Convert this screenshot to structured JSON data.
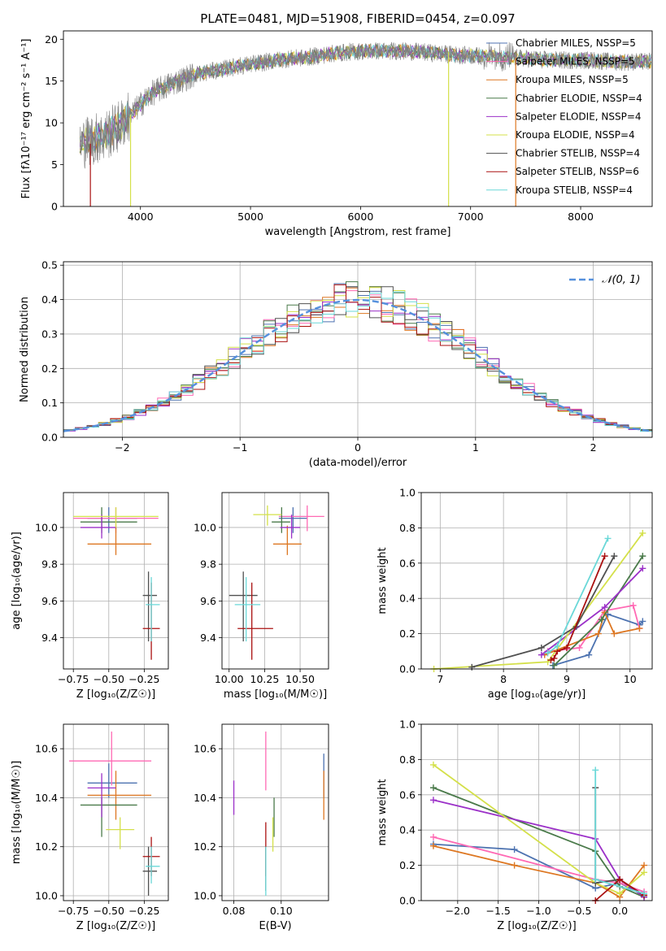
{
  "title": "PLATE=0481, MJD=51908, FIBERID=0454, z=0.097",
  "colors": {
    "chabrier_miles": "#4c72b0",
    "salpeter_miles": "#ff69b4",
    "kroupa_miles": "#dd7722",
    "chabrier_elodie": "#4a7a4a",
    "salpeter_elodie": "#9b30c8",
    "kroupa_elodie": "#d4e04a",
    "chabrier_stelib": "#505050",
    "salpeter_stelib": "#aa1111",
    "kroupa_stelib": "#6ad8d8",
    "gauss": "#5590dd",
    "grid": "#b0b0b0"
  },
  "chart_data": [
    {
      "id": "spectrum",
      "type": "line",
      "title": "PLATE=0481, MJD=51908, FIBERID=0454, z=0.097",
      "xlabel": "wavelength [Angstrom, rest frame]",
      "ylabel": "Flux [fλ10⁻¹⁷ erg cm⁻² s⁻¹ A⁻¹]",
      "xlim": [
        3300,
        8650
      ],
      "ylim": [
        0,
        21
      ],
      "xticks": [
        "4000",
        "5000",
        "6000",
        "7000",
        "8000"
      ],
      "yticks": [
        "0",
        "5",
        "10",
        "15",
        "20"
      ],
      "legend_position": "top-right",
      "legend": [
        "Chabrier MILES, NSSP=5",
        "Salpeter MILES, NSSP=5",
        "Kroupa MILES, NSSP=5",
        "Chabrier ELODIE, NSSP=4",
        "Salpeter ELODIE, NSSP=4",
        "Kroupa ELODIE, NSSP=4",
        "Chabrier STELIB, NSSP=4",
        "Salpeter STELIB, NSSP=6",
        "Kroupa STELIB, NSSP=4"
      ],
      "data_trend": {
        "x": [
          3450,
          3550,
          3650,
          3800,
          3950,
          4100,
          4300,
          4500,
          4700,
          4900,
          5100,
          5300,
          5500,
          5700,
          5900,
          6100,
          6300,
          6500,
          6700,
          6900,
          7100,
          7300,
          7500,
          7700,
          7900,
          8100,
          8300,
          8600
        ],
        "y": [
          7.5,
          8,
          8.3,
          9.5,
          11.5,
          13.5,
          14.8,
          15.8,
          16.3,
          16.8,
          17.2,
          17.6,
          17.8,
          18.2,
          18.5,
          18.6,
          18.6,
          18.5,
          18.3,
          18.1,
          18.0,
          17.8,
          17.7,
          17.5,
          17.5,
          17.5,
          17.3,
          17.3
        ]
      }
    },
    {
      "id": "residuals",
      "type": "histogram",
      "xlabel": "(data-model)/error",
      "ylabel": "Normed distribution",
      "xlim": [
        -2.5,
        2.5
      ],
      "ylim": [
        0,
        0.51
      ],
      "xticks": [
        "−2",
        "−1",
        "0",
        "1",
        "2"
      ],
      "yticks": [
        "0.0",
        "0.1",
        "0.2",
        "0.3",
        "0.4",
        "0.5"
      ],
      "legend_position": "top-right",
      "gauss_label": "𝒩(0, 1)",
      "bin_width": 0.1
    },
    {
      "id": "age_vs_Z",
      "type": "errorbar",
      "xlabel": "Z [log₁₀(Z/Z☉)]",
      "ylabel": "age  [log₁₀(age/yr)]",
      "xlim": [
        -0.82,
        -0.08
      ],
      "ylim": [
        9.23,
        10.19
      ],
      "xticks": [
        "−0.75",
        "−0.50",
        "−0.25"
      ],
      "yticks": [
        "9.4",
        "9.6",
        "9.8",
        "10.0"
      ],
      "points": [
        {
          "model": "chabrier_miles",
          "x": -0.5,
          "y": 10.05,
          "xe": [
            0.15,
            0.2
          ],
          "ye": [
            0.08,
            0.06
          ]
        },
        {
          "model": "salpeter_miles",
          "x": -0.45,
          "y": 10.05,
          "xe": [
            0.3,
            0.3
          ],
          "ye": [
            0.08,
            0.06
          ]
        },
        {
          "model": "kroupa_miles",
          "x": -0.45,
          "y": 9.91,
          "xe": [
            0.2,
            0.25
          ],
          "ye": [
            0.06,
            0.1
          ]
        },
        {
          "model": "chabrier_elodie",
          "x": -0.55,
          "y": 10.03,
          "xe": [
            0.15,
            0.25
          ],
          "ye": [
            0.06,
            0.08
          ]
        },
        {
          "model": "salpeter_elodie",
          "x": -0.55,
          "y": 10.0,
          "xe": [
            0.15,
            0.1
          ],
          "ye": [
            0.06,
            0.07
          ]
        },
        {
          "model": "kroupa_elodie",
          "x": -0.45,
          "y": 10.06,
          "xe": [
            0.3,
            0.3
          ],
          "ye": [
            0.06,
            0.05
          ]
        },
        {
          "model": "chabrier_stelib",
          "x": -0.22,
          "y": 9.63,
          "xe": [
            0.04,
            0.06
          ],
          "ye": [
            0.25,
            0.13
          ]
        },
        {
          "model": "salpeter_stelib",
          "x": -0.2,
          "y": 9.45,
          "xe": [
            0.06,
            0.06
          ],
          "ye": [
            0.17,
            0.25
          ]
        },
        {
          "model": "kroupa_stelib",
          "x": -0.2,
          "y": 9.58,
          "xe": [
            0.04,
            0.06
          ],
          "ye": [
            0.2,
            0.15
          ]
        }
      ]
    },
    {
      "id": "age_vs_mass",
      "type": "errorbar",
      "xlabel": "mass [log₁₀(M/M☉)]",
      "ylabel": "",
      "xlim": [
        9.95,
        10.7
      ],
      "ylim": [
        9.23,
        10.19
      ],
      "xticks": [
        "10.00",
        "10.25",
        "10.50"
      ],
      "yticks": [
        "9.4",
        "9.6",
        "9.8",
        "10.0"
      ],
      "points": [
        {
          "model": "chabrier_miles",
          "x": 10.45,
          "y": 10.05,
          "xe": [
            0.1,
            0.1
          ],
          "ye": [
            0.08,
            0.06
          ]
        },
        {
          "model": "salpeter_miles",
          "x": 10.55,
          "y": 10.06,
          "xe": [
            0.2,
            0.12
          ],
          "ye": [
            0.08,
            0.06
          ]
        },
        {
          "model": "kroupa_miles",
          "x": 10.41,
          "y": 9.91,
          "xe": [
            0.1,
            0.1
          ],
          "ye": [
            0.06,
            0.1
          ]
        },
        {
          "model": "chabrier_elodie",
          "x": 10.37,
          "y": 10.03,
          "xe": [
            0.07,
            0.06
          ],
          "ye": [
            0.06,
            0.08
          ]
        },
        {
          "model": "salpeter_elodie",
          "x": 10.44,
          "y": 10.0,
          "xe": [
            0.08,
            0.06
          ],
          "ye": [
            0.06,
            0.07
          ]
        },
        {
          "model": "kroupa_elodie",
          "x": 10.27,
          "y": 10.07,
          "xe": [
            0.1,
            0.1
          ],
          "ye": [
            0.06,
            0.05
          ]
        },
        {
          "model": "chabrier_stelib",
          "x": 10.1,
          "y": 9.63,
          "xe": [
            0.1,
            0.1
          ],
          "ye": [
            0.25,
            0.13
          ]
        },
        {
          "model": "salpeter_stelib",
          "x": 10.16,
          "y": 9.45,
          "xe": [
            0.1,
            0.15
          ],
          "ye": [
            0.17,
            0.25
          ]
        },
        {
          "model": "kroupa_stelib",
          "x": 10.12,
          "y": 9.58,
          "xe": [
            0.08,
            0.1
          ],
          "ye": [
            0.2,
            0.15
          ]
        }
      ]
    },
    {
      "id": "mw_vs_age",
      "type": "line",
      "xlabel": "age  [log₁₀(age/yr)]",
      "ylabel": "mass weight",
      "xlim": [
        6.7,
        10.35
      ],
      "ylim": [
        0,
        1
      ],
      "xticks": [
        "7",
        "8",
        "9",
        "10"
      ],
      "yticks": [
        "0.0",
        "0.2",
        "0.4",
        "0.6",
        "0.8",
        "1.0"
      ],
      "series": [
        {
          "model": "chabrier_miles",
          "x": [
            8.78,
            9.35,
            9.65,
            10.15,
            10.2
          ],
          "y": [
            0.02,
            0.08,
            0.31,
            0.25,
            0.27
          ]
        },
        {
          "model": "salpeter_miles",
          "x": [
            8.7,
            9.2,
            9.6,
            10.05,
            10.15
          ],
          "y": [
            0.1,
            0.12,
            0.33,
            0.36,
            0.23
          ]
        },
        {
          "model": "kroupa_miles",
          "x": [
            8.65,
            9.5,
            9.6,
            9.75,
            10.15
          ],
          "y": [
            0.08,
            0.2,
            0.32,
            0.2,
            0.23
          ]
        },
        {
          "model": "chabrier_elodie",
          "x": [
            8.8,
            9.55,
            10.2
          ],
          "y": [
            0.02,
            0.28,
            0.64
          ]
        },
        {
          "model": "salpeter_elodie",
          "x": [
            8.6,
            9.6,
            10.2
          ],
          "y": [
            0.08,
            0.35,
            0.57
          ]
        },
        {
          "model": "kroupa_elodie",
          "x": [
            6.9,
            8.7,
            10.2
          ],
          "y": [
            0.0,
            0.04,
            0.77
          ]
        },
        {
          "model": "chabrier_stelib",
          "x": [
            7.5,
            8.6,
            9.15,
            9.75
          ],
          "y": [
            0.01,
            0.12,
            0.24,
            0.64
          ]
        },
        {
          "model": "salpeter_stelib",
          "x": [
            8.75,
            8.8,
            8.85,
            9.0,
            9.6
          ],
          "y": [
            0.05,
            0.06,
            0.1,
            0.12,
            0.64
          ]
        },
        {
          "model": "kroupa_stelib",
          "x": [
            8.7,
            8.85,
            9.65
          ],
          "y": [
            0.09,
            0.13,
            0.74
          ]
        }
      ]
    },
    {
      "id": "mass_vs_Z",
      "type": "errorbar",
      "xlabel": "Z [log₁₀(Z/Z☉)]",
      "ylabel": "mass [log₁₀(M/M☉)]",
      "xlim": [
        -0.82,
        -0.08
      ],
      "ylim": [
        9.98,
        10.7
      ],
      "xticks": [
        "−0.75",
        "−0.50",
        "−0.25"
      ],
      "yticks": [
        "10.0",
        "10.2",
        "10.4",
        "10.6"
      ],
      "points": [
        {
          "model": "chabrier_miles",
          "x": -0.5,
          "y": 10.46,
          "xe": [
            0.15,
            0.2
          ],
          "ye": [
            0.06,
            0.08
          ]
        },
        {
          "model": "salpeter_miles",
          "x": -0.48,
          "y": 10.55,
          "xe": [
            0.3,
            0.28
          ],
          "ye": [
            0.1,
            0.12
          ]
        },
        {
          "model": "kroupa_miles",
          "x": -0.45,
          "y": 10.41,
          "xe": [
            0.2,
            0.25
          ],
          "ye": [
            0.1,
            0.1
          ]
        },
        {
          "model": "chabrier_elodie",
          "x": -0.55,
          "y": 10.37,
          "xe": [
            0.15,
            0.25
          ],
          "ye": [
            0.13,
            0.03
          ]
        },
        {
          "model": "salpeter_elodie",
          "x": -0.55,
          "y": 10.44,
          "xe": [
            0.1,
            0.1
          ],
          "ye": [
            0.12,
            0.06
          ]
        },
        {
          "model": "kroupa_elodie",
          "x": -0.42,
          "y": 10.27,
          "xe": [
            0.1,
            0.1
          ],
          "ye": [
            0.08,
            0.05
          ]
        },
        {
          "model": "chabrier_stelib",
          "x": -0.22,
          "y": 10.1,
          "xe": [
            0.04,
            0.06
          ],
          "ye": [
            0.1,
            0.1
          ]
        },
        {
          "model": "salpeter_stelib",
          "x": -0.2,
          "y": 10.16,
          "xe": [
            0.06,
            0.06
          ],
          "ye": [
            0.08,
            0.08
          ]
        },
        {
          "model": "kroupa_stelib",
          "x": -0.2,
          "y": 10.12,
          "xe": [
            0.04,
            0.06
          ],
          "ye": [
            0.07,
            0.08
          ]
        }
      ]
    },
    {
      "id": "mass_vs_EBV",
      "type": "errorbar",
      "xlabel": "E(B-V)",
      "ylabel": "",
      "xlim": [
        0.075,
        0.12
      ],
      "ylim": [
        9.98,
        10.7
      ],
      "xticks": [
        "0.08",
        "0.10"
      ],
      "yticks": [
        "10.0",
        "10.2",
        "10.4",
        "10.6"
      ],
      "points": [
        {
          "model": "chabrier_miles",
          "x": 0.118,
          "y": 10.46,
          "ye": [
            0.06,
            0.12
          ]
        },
        {
          "model": "salpeter_miles",
          "x": 0.0935,
          "y": 10.55,
          "ye": [
            0.12,
            0.12
          ]
        },
        {
          "model": "kroupa_miles",
          "x": 0.118,
          "y": 10.41,
          "ye": [
            0.1,
            0.1
          ]
        },
        {
          "model": "chabrier_elodie",
          "x": 0.097,
          "y": 10.37,
          "ye": [
            0.13,
            0.03
          ]
        },
        {
          "model": "salpeter_elodie",
          "x": 0.08,
          "y": 10.4,
          "ye": [
            0.07,
            0.07
          ]
        },
        {
          "model": "kroupa_elodie",
          "x": 0.0965,
          "y": 10.27,
          "ye": [
            0.09,
            0.05
          ]
        },
        {
          "model": "chabrier_stelib",
          "x": 0.0935,
          "y": 10.1,
          "ye": [
            0.08,
            0.1
          ]
        },
        {
          "model": "salpeter_stelib",
          "x": 0.0935,
          "y": 10.2,
          "ye": [
            0.12,
            0.1
          ]
        },
        {
          "model": "kroupa_stelib",
          "x": 0.0935,
          "y": 10.1,
          "ye": [
            0.1,
            0.1
          ]
        }
      ]
    },
    {
      "id": "mw_vs_Z",
      "type": "line",
      "xlabel": "Z [log₁₀(Z/Z☉)]",
      "ylabel": "mass weight",
      "xlim": [
        -2.45,
        0.4
      ],
      "ylim": [
        0,
        1
      ],
      "xticks": [
        "−2.0",
        "−1.5",
        "−1.0",
        "−0.5",
        "0.0"
      ],
      "yticks": [
        "0.0",
        "0.2",
        "0.4",
        "0.6",
        "0.8",
        "1.0"
      ],
      "series": [
        {
          "model": "chabrier_miles",
          "x": [
            -2.3,
            -1.3,
            -0.3,
            0.0,
            0.3
          ],
          "y": [
            0.32,
            0.29,
            0.07,
            0.1,
            0.03
          ]
        },
        {
          "model": "salpeter_miles",
          "x": [
            -2.3,
            -0.3,
            0.0,
            0.3
          ],
          "y": [
            0.36,
            0.12,
            0.1,
            0.05
          ]
        },
        {
          "model": "kroupa_miles",
          "x": [
            -2.3,
            -1.3,
            -0.3,
            0.0,
            0.3
          ],
          "y": [
            0.31,
            0.2,
            0.1,
            0.02,
            0.2
          ]
        },
        {
          "model": "chabrier_elodie",
          "x": [
            -2.3,
            -0.3,
            0.0,
            0.3
          ],
          "y": [
            0.64,
            0.28,
            0.08,
            0.02
          ]
        },
        {
          "model": "salpeter_elodie",
          "x": [
            -2.3,
            -0.3,
            0.0,
            0.3
          ],
          "y": [
            0.57,
            0.35,
            0.12,
            0.02
          ]
        },
        {
          "model": "kroupa_elodie",
          "x": [
            -2.3,
            -0.3,
            0.0,
            0.3
          ],
          "y": [
            0.77,
            0.1,
            0.04,
            0.16
          ]
        },
        {
          "model": "chabrier_stelib",
          "x": [
            -0.3,
            -0.3,
            0.0,
            0.3
          ],
          "y": [
            0.64,
            0.1,
            0.12,
            0.03
          ]
        },
        {
          "model": "salpeter_stelib",
          "x": [
            -0.3,
            0.0,
            0.3
          ],
          "y": [
            0.0,
            0.12,
            0.03
          ]
        },
        {
          "model": "kroupa_stelib",
          "x": [
            -0.3,
            -0.3,
            0.3
          ],
          "y": [
            0.74,
            0.12,
            0.04
          ]
        }
      ]
    }
  ]
}
